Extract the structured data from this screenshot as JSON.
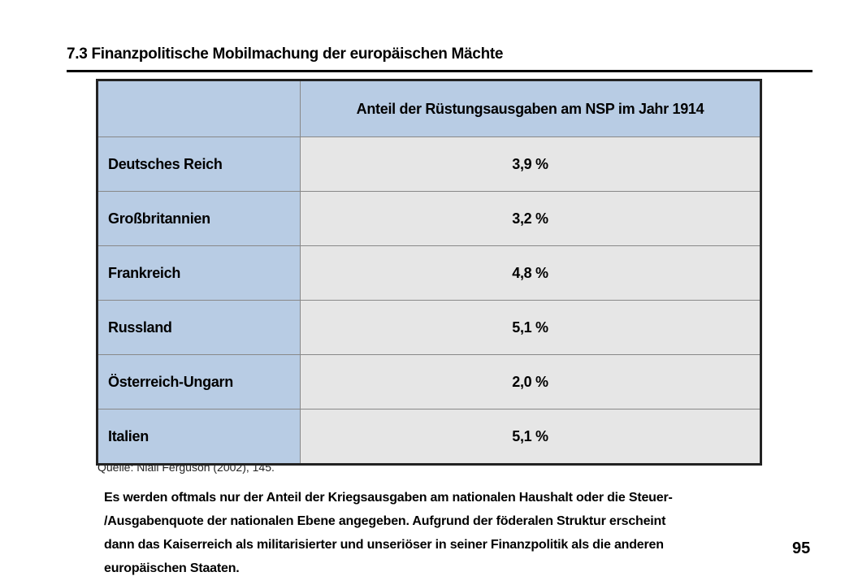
{
  "title": "7.3 Finanzpolitische Mobilmachung der europäischen Mächte",
  "table": {
    "corner": "",
    "header": "Anteil der Rüstungsausgaben am NSP im Jahr 1914",
    "rows": [
      {
        "country": "Deutsches Reich",
        "value": "3,9 %"
      },
      {
        "country": "Großbritannien",
        "value": "3,2 %"
      },
      {
        "country": "Frankreich",
        "value": "4,8 %"
      },
      {
        "country": "Russland",
        "value": "5,1 %"
      },
      {
        "country": "Österreich-Ungarn",
        "value": "2,0 %"
      },
      {
        "country": "Italien",
        "value": "5,1 %"
      }
    ]
  },
  "source": "Quelle: Niall Ferguson (2002), 145.",
  "note": {
    "lines": [
      "Es werden oftmals nur der Anteil der Kriegsausgaben am nationalen Haushalt oder die Steuer-",
      "/Ausgabenquote der nationalen Ebene angegeben. Aufgrund der föderalen Struktur erscheint",
      "dann das Kaiserreich als militarisierter und unseriöser in seiner Finanzpolitik als die anderen",
      "europäischen Staaten."
    ]
  },
  "page_number": "95"
}
